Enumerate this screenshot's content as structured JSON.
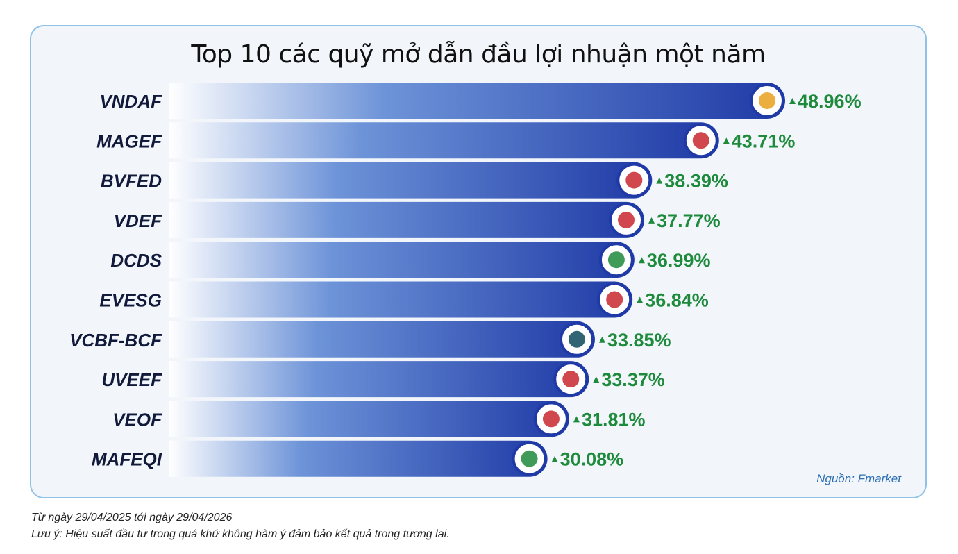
{
  "chart_data": {
    "type": "bar",
    "orientation": "horizontal",
    "title": "Top 10 các quỹ mở dẫn đầu lợi nhuận một năm",
    "categories": [
      "VNDAF",
      "MAGEF",
      "BVFED",
      "VDEF",
      "DCDS",
      "EVESG",
      "VCBF-BCF",
      "UVEEF",
      "VEOF",
      "MAFEQI"
    ],
    "values": [
      48.96,
      43.71,
      38.39,
      37.77,
      36.99,
      36.84,
      33.85,
      33.37,
      31.81,
      30.08
    ],
    "value_labels": [
      "48.96%",
      "43.71%",
      "38.39%",
      "37.77%",
      "36.99%",
      "36.84%",
      "33.85%",
      "33.37%",
      "31.81%",
      "30.08%"
    ],
    "logos": [
      "vnd-logo",
      "mirae-asset-logo",
      "bvf-globe-logo",
      "vinacapital-logo",
      "dragon-capital-logo",
      "eastspring-logo",
      "vcbf-logo",
      "uob-logo",
      "vinacapital-logo",
      "manulife-logo"
    ],
    "legend": "none",
    "grid": false,
    "colors": {
      "bar_start": "#ffffff",
      "bar_end": "#1f3aa6",
      "value_text": "#1e8a3c",
      "logo_ring": "#1f3aa6"
    }
  },
  "source": "Nguồn: Fmarket",
  "footnote_date": "Từ ngày 29/04/2025 tới ngày 29/04/2026",
  "footnote_note": "Lưu ý: Hiệu suất đầu tư trong quá khứ không hàm ý đảm bảo kết quả trong tương lai."
}
